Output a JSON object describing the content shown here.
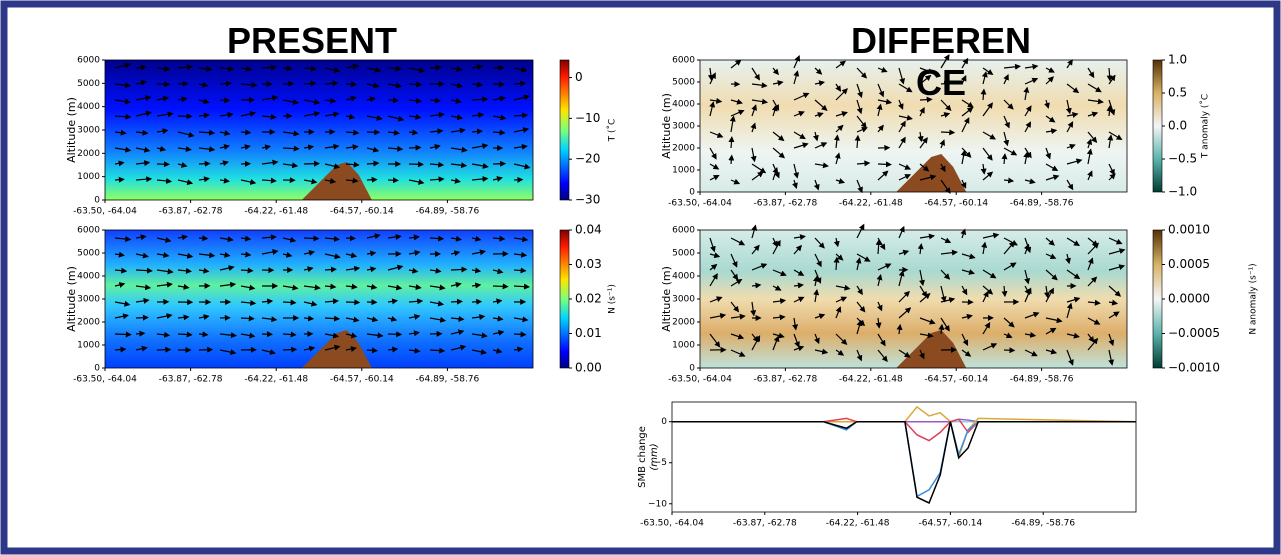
{
  "headings": [
    "PRESENT",
    "DIFFERENCE"
  ],
  "chart_data": [
    {
      "type": "heatmap",
      "ylabel": "Altitude (m)",
      "xlim": [
        0,
        5
      ],
      "xticks": [
        {
          "value": 0,
          "label": "-63.50, -64.04"
        },
        {
          "value": 1,
          "label": "-63.87, -62.78"
        },
        {
          "value": 2,
          "label": "-64.22, -61.48"
        },
        {
          "value": 3,
          "label": "-64.57, -60.14"
        },
        {
          "value": 4,
          "label": "-64.89, -58.76"
        }
      ],
      "ylim": [
        0,
        6000
      ],
      "yticks": [
        0,
        1000,
        2000,
        3000,
        4000,
        5000,
        6000
      ],
      "colorbar": {
        "label": "T (˚C",
        "colormap": "jet",
        "clim": [
          -30,
          4.3
        ],
        "ticks": [
          0,
          {
            "value": -10,
            "label": "−10"
          },
          {
            "value": -20,
            "label": "−20"
          },
          {
            "value": -30,
            "label": "−30"
          }
        ]
      }
    },
    {
      "type": "heatmap",
      "ylabel": "Altitude (m)",
      "xlim": [
        0,
        5
      ],
      "xticks": [
        {
          "value": 0,
          "label": "-63.50, -64.04"
        },
        {
          "value": 1,
          "label": "-63.87, -62.78"
        },
        {
          "value": 2,
          "label": "-64.22, -61.48"
        },
        {
          "value": 3,
          "label": "-64.57, -60.14"
        },
        {
          "value": 4,
          "label": "-64.89, -58.76"
        }
      ],
      "ylim": [
        0,
        6000
      ],
      "yticks": [
        0,
        1000,
        2000,
        3000,
        4000,
        5000,
        6000
      ],
      "colorbar": {
        "label": "N (s⁻¹)",
        "colormap": "jet",
        "clim": [
          0,
          0.04
        ],
        "ticks": [
          {
            "value": 0,
            "label": "0.00"
          },
          0.01,
          0.02,
          0.03,
          0.04
        ]
      }
    },
    {
      "type": "heatmap",
      "ylabel": "Altitude (m)",
      "xlim": [
        0,
        5
      ],
      "xticks": [
        {
          "value": 0,
          "label": "-63.50, -64.04"
        },
        {
          "value": 1,
          "label": "-63.87, -62.78"
        },
        {
          "value": 2,
          "label": "-64.22, -61.48"
        },
        {
          "value": 3,
          "label": "-64.57, -60.14"
        },
        {
          "value": 4,
          "label": "-64.89, -58.76"
        }
      ],
      "ylim": [
        0,
        6000
      ],
      "yticks": [
        0,
        1000,
        2000,
        3000,
        4000,
        5000,
        6000
      ],
      "colorbar": {
        "label": "T anomaly (˚C",
        "colormap": "BrBG",
        "clim": [
          -1,
          1
        ],
        "ticks": [
          {
            "value": 1,
            "label": "1.0"
          },
          0.5,
          {
            "value": 0,
            "label": "0.0"
          },
          {
            "value": -0.5,
            "label": "−0.5"
          },
          {
            "value": -1,
            "label": "−1.0"
          }
        ]
      }
    },
    {
      "type": "heatmap",
      "ylabel": "Altitude (m)",
      "xlim": [
        0,
        5
      ],
      "xticks": [
        {
          "value": 0,
          "label": "-63.50, -64.04"
        },
        {
          "value": 1,
          "label": "-63.87, -62.78"
        },
        {
          "value": 2,
          "label": "-64.22, -61.48"
        },
        {
          "value": 3,
          "label": "-64.57, -60.14"
        },
        {
          "value": 4,
          "label": "-64.89, -58.76"
        }
      ],
      "ylim": [
        0,
        6000
      ],
      "yticks": [
        0,
        1000,
        2000,
        3000,
        4000,
        5000,
        6000
      ],
      "colorbar": {
        "label": "N anomaly (s⁻¹)",
        "colormap": "BrBG",
        "clim": [
          -0.001,
          0.001
        ],
        "ticks": [
          {
            "value": 0.001,
            "label": "0.0010"
          },
          {
            "value": 0.0005,
            "label": "0.0005"
          },
          {
            "value": 0,
            "label": "0.0000"
          },
          {
            "value": -0.0005,
            "label": "−0.0005"
          },
          {
            "value": -0.001,
            "label": "−0.0010"
          }
        ]
      }
    },
    {
      "type": "line",
      "ylabel": [
        "SMB change",
        "(mm)"
      ],
      "xlim": [
        0,
        5
      ],
      "xticks": [
        {
          "value": 0,
          "label": "-63.50, -64.04"
        },
        {
          "value": 1,
          "label": "-63.87, -62.78"
        },
        {
          "value": 2,
          "label": "-64.22, -61.48"
        },
        {
          "value": 3,
          "label": "-64.57, -60.14"
        },
        {
          "value": 4,
          "label": "-64.89, -58.76"
        }
      ],
      "ylim": [
        -11,
        2.4
      ],
      "yticks": [
        0,
        {
          "value": -5,
          "label": "−5"
        },
        {
          "value": -10,
          "label": "−10"
        }
      ],
      "x": [
        0,
        1.63,
        1.88,
        1.99,
        2.51,
        2.64,
        2.77,
        2.89,
        3.0,
        3.09,
        3.19,
        3.3,
        5
      ],
      "series": [
        {
          "color": "#7fd6e6",
          "values": [
            0,
            0,
            0,
            0,
            0,
            0,
            0,
            0,
            0,
            0,
            0,
            0,
            0
          ]
        },
        {
          "color": "#9b59c9",
          "values": [
            0,
            0,
            0,
            0,
            0,
            0,
            0,
            0,
            0,
            0.3,
            0.2,
            0,
            0
          ]
        },
        {
          "color": "#d9a935",
          "values": [
            0,
            0,
            0,
            0,
            0,
            1.8,
            0.7,
            1.1,
            0,
            -4.3,
            -1.0,
            0.4,
            0
          ]
        },
        {
          "color": "#e0405a",
          "values": [
            0,
            0,
            0.4,
            0,
            0,
            -1.6,
            -2.3,
            -1.3,
            0,
            0.3,
            -1.3,
            0,
            0
          ]
        },
        {
          "color": "#3a8fdc",
          "values": [
            0,
            0,
            -1.0,
            0,
            0,
            -9.1,
            -8.3,
            -6.2,
            0,
            -4.0,
            -1.0,
            0,
            0
          ]
        },
        {
          "color": "#000000",
          "values": [
            0,
            0,
            -0.8,
            0,
            0,
            -9.2,
            -9.9,
            -6.5,
            0,
            -4.4,
            -3.2,
            0,
            0
          ]
        }
      ]
    }
  ]
}
